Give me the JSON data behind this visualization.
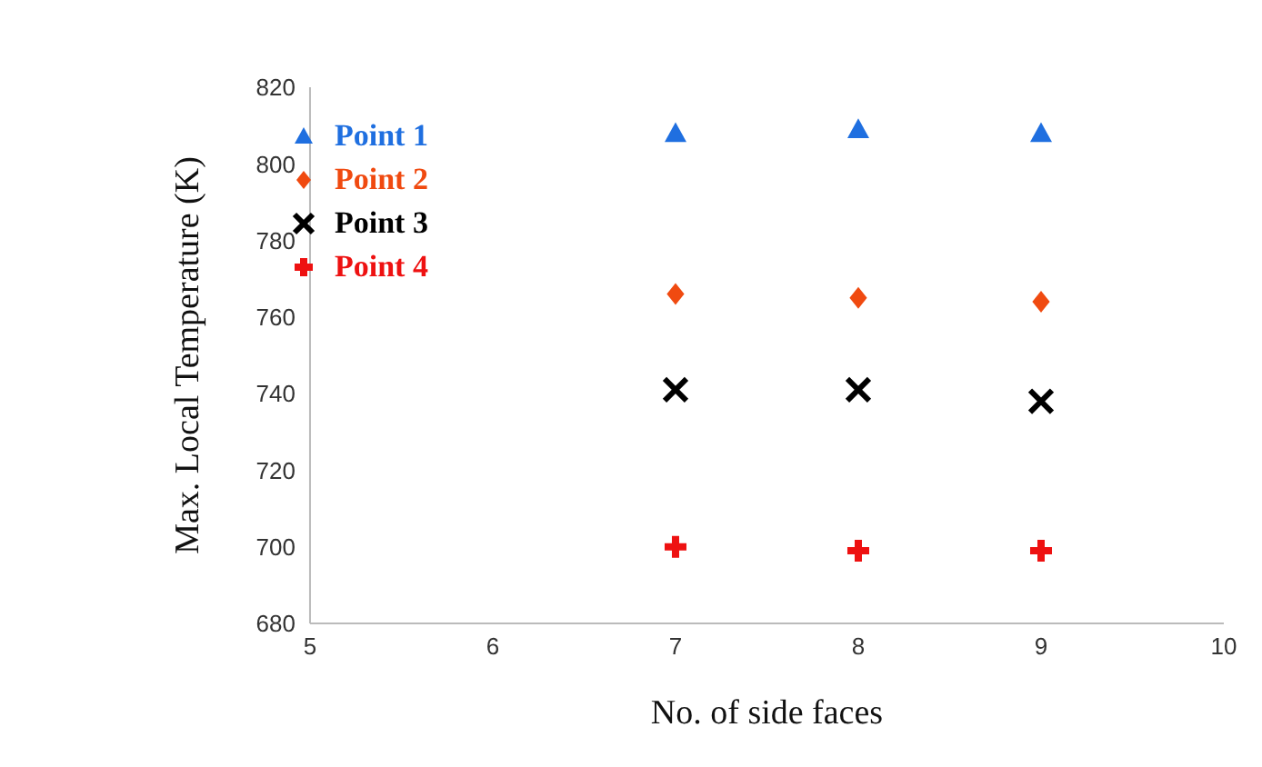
{
  "chart_data": {
    "type": "scatter",
    "xlabel": "No. of side faces",
    "ylabel": "Max. Local Temperature (K)",
    "x": [
      7,
      8,
      9
    ],
    "xlim": [
      5,
      10
    ],
    "xticks": [
      5,
      6,
      7,
      8,
      9,
      10
    ],
    "ylim": [
      680,
      820
    ],
    "yticks": [
      680,
      700,
      720,
      740,
      760,
      780,
      800,
      820
    ],
    "grid": false,
    "legend": "top left",
    "series": [
      {
        "name": "Point 1",
        "color": "#1f6fe0",
        "marker": "triangle",
        "values": [
          808,
          809,
          808
        ]
      },
      {
        "name": "Point 2",
        "color": "#f04a10",
        "marker": "diamond",
        "values": [
          766,
          765,
          764
        ]
      },
      {
        "name": "Point 3",
        "color": "#000000",
        "marker": "cross",
        "values": [
          741,
          741,
          738
        ]
      },
      {
        "name": "Point 4",
        "color": "#ee1111",
        "marker": "plus",
        "values": [
          700,
          699,
          699
        ]
      }
    ]
  }
}
